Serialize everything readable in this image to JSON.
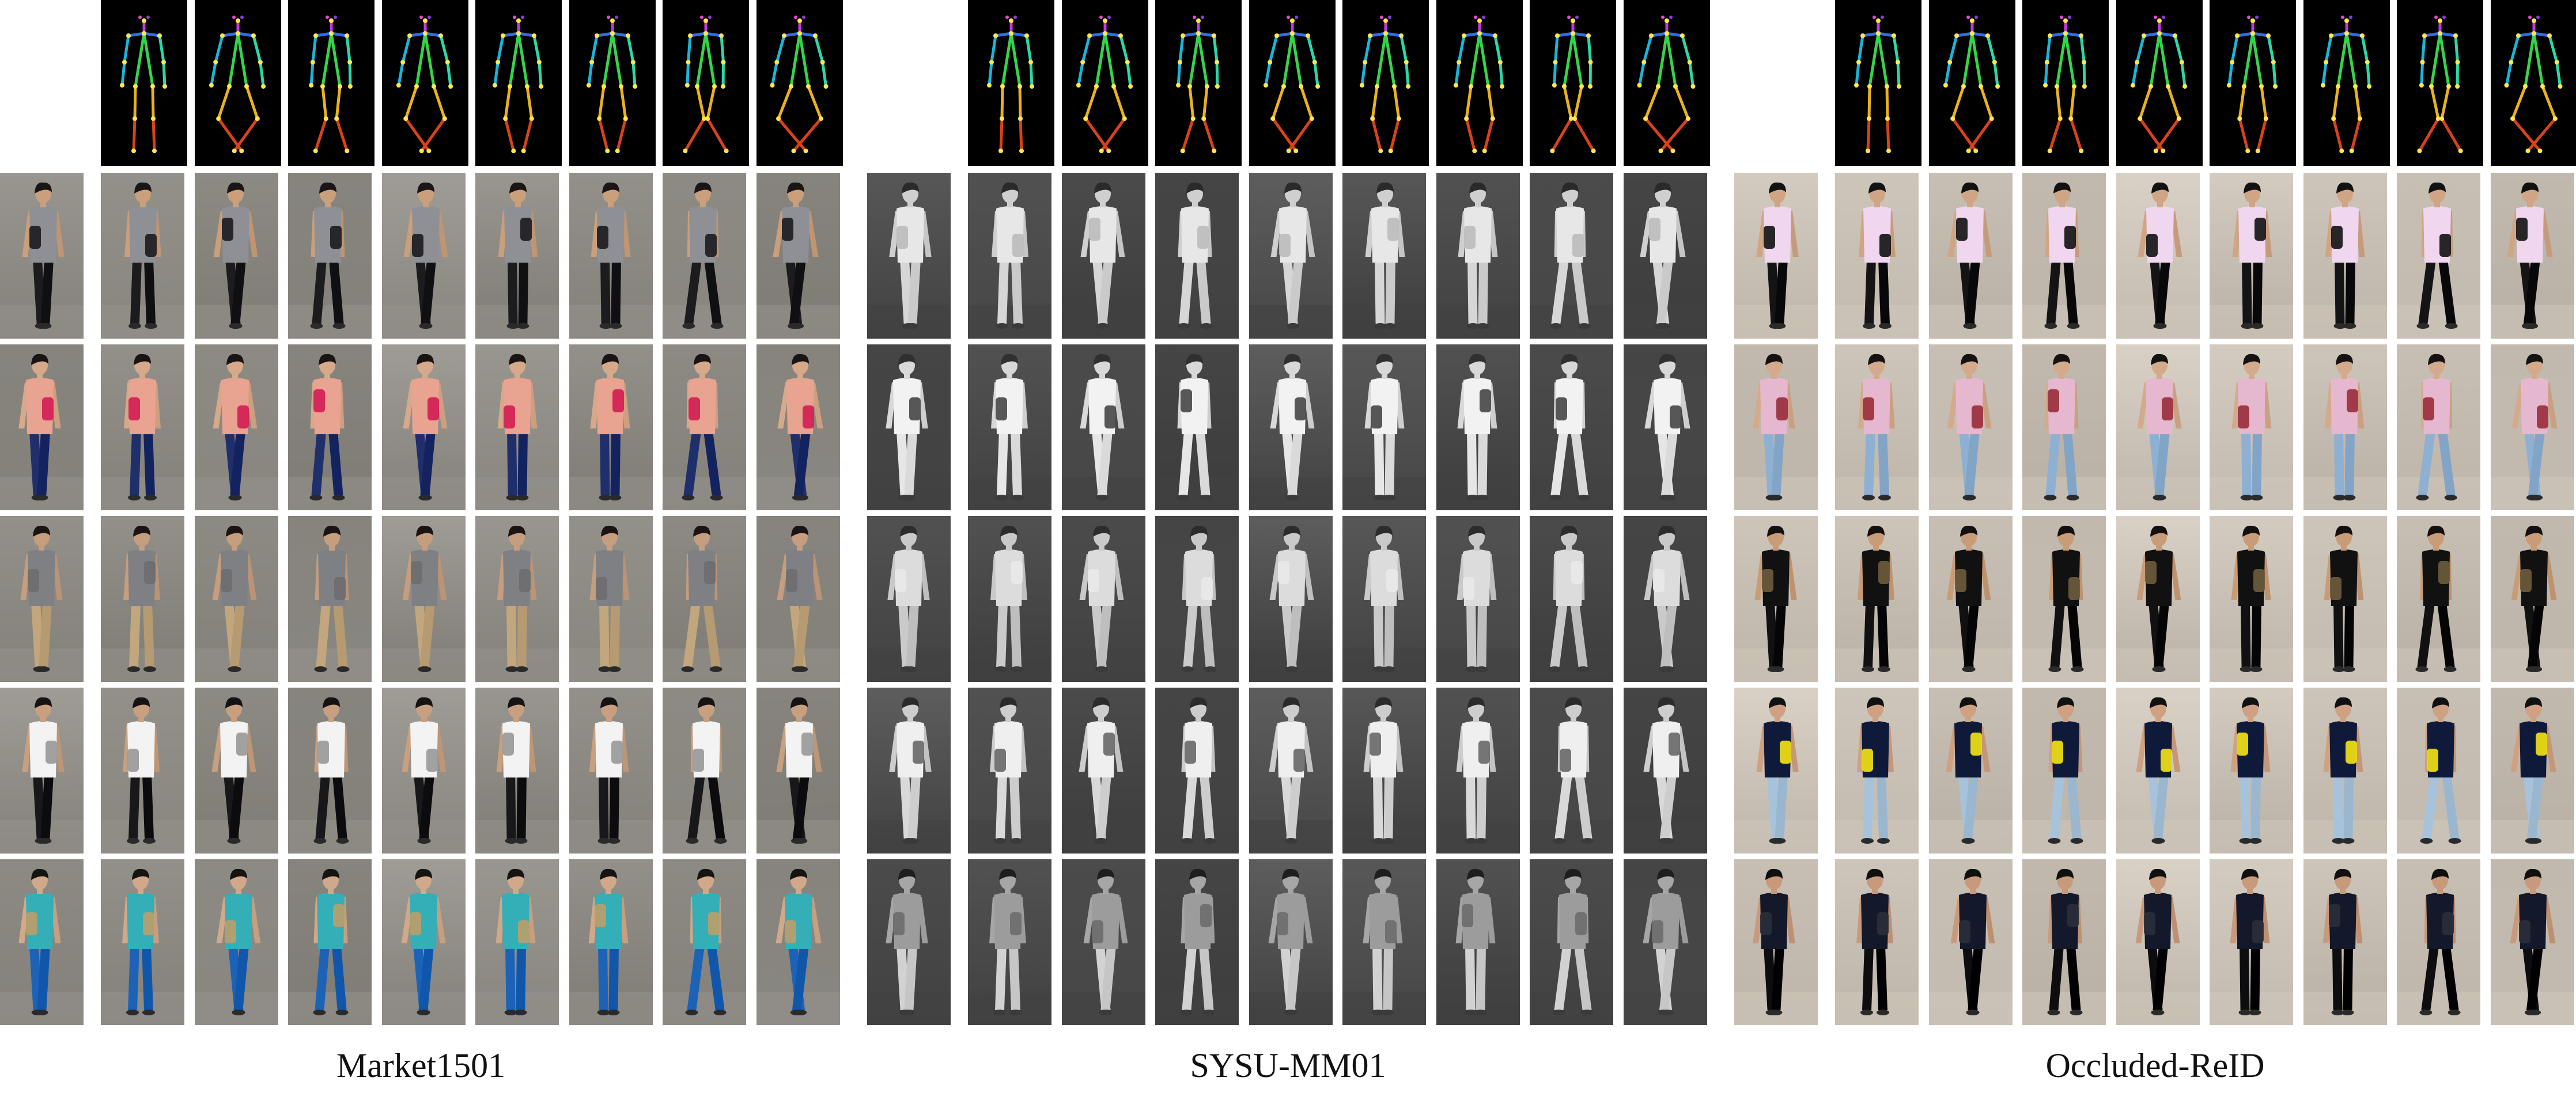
{
  "panels": [
    {
      "id": "market1501",
      "caption": "Market1501",
      "style": "rgb",
      "background": "#8d8a84",
      "rows": [
        {
          "shirt": "#8f9096",
          "pants": "#1c1c1e",
          "skin": "#c99f7c",
          "hair": "#1a1616",
          "bag": "#1e1e22"
        },
        {
          "shirt": "#e9a391",
          "pants": "#1f2f6c",
          "skin": "#d6a98a",
          "hair": "#1b1414",
          "bag": "#d21f55"
        },
        {
          "shirt": "#7f8084",
          "pants": "#c2a67d",
          "skin": "#c59d7f",
          "hair": "#1a1514",
          "bag": "#6e6e70"
        },
        {
          "shirt": "#f3f3f3",
          "pants": "#18181a",
          "skin": "#c8a080",
          "hair": "#151313",
          "bag": "#9a9a9a"
        },
        {
          "shirt": "#34aeb7",
          "pants": "#1c63b8",
          "skin": "#d1a98a",
          "hair": "#161313",
          "bag": "#ba9e6a"
        }
      ]
    },
    {
      "id": "sysu-mm01",
      "caption": "SYSU-MM01",
      "style": "ir",
      "background": "#4b4b4b",
      "rows": [
        {
          "shirt": "#e7e7e7",
          "pants": "#d6d6d6",
          "skin": "#cfcfcf",
          "hair": "#2a2a2a",
          "bag": "#bdbdbd"
        },
        {
          "shirt": "#f2f2f2",
          "pants": "#e6e6e6",
          "skin": "#d8d8d8",
          "hair": "#303030",
          "bag": "#4a4a4a"
        },
        {
          "shirt": "#dcdcdc",
          "pants": "#cacaca",
          "skin": "#c9c9c9",
          "hair": "#2c2c2c",
          "bag": "#e8e8e8"
        },
        {
          "shirt": "#efefef",
          "pants": "#d9d9d9",
          "skin": "#cdcdcd",
          "hair": "#2b2b2b",
          "bag": "#6a6a6a"
        },
        {
          "shirt": "#9c9c9c",
          "pants": "#d2d2d2",
          "skin": "#a6a6a6",
          "hair": "#1e1e1e",
          "bag": "#6e6e6e"
        }
      ]
    },
    {
      "id": "occluded-reid",
      "caption": "Occluded-ReID",
      "style": "rgb",
      "background": "#c7bfb3",
      "rows": [
        {
          "shirt": "#f1d6ef",
          "pants": "#141416",
          "skin": "#cfa585",
          "hair": "#121212",
          "bag": "#161616"
        },
        {
          "shirt": "#e6b8cf",
          "pants": "#8eb0d2",
          "skin": "#d4aa8c",
          "hair": "#151212",
          "bag": "#9a2f3e"
        },
        {
          "shirt": "#111112",
          "pants": "#111112",
          "skin": "#c99c78",
          "hair": "#121010",
          "bag": "#6b5a3c"
        },
        {
          "shirt": "#0f1a3a",
          "pants": "#a7c3db",
          "skin": "#cfa081",
          "hair": "#111",
          "bag": "#f1e016"
        },
        {
          "shirt": "#13182a",
          "pants": "#0d0d10",
          "skin": "#c89a7b",
          "hair": "#101010",
          "bag": "#2a2f3b"
        }
      ]
    }
  ],
  "pose_colors": {
    "head": "#c23bd9",
    "shoulders": "#2f6cf0",
    "left_arm": "#1bb5d8",
    "right_arm": "#2bd9a8",
    "torso": "#36d44a",
    "left_leg": "#e9b21e",
    "right_leg": "#d9421b",
    "joints": "#ffe84a"
  }
}
